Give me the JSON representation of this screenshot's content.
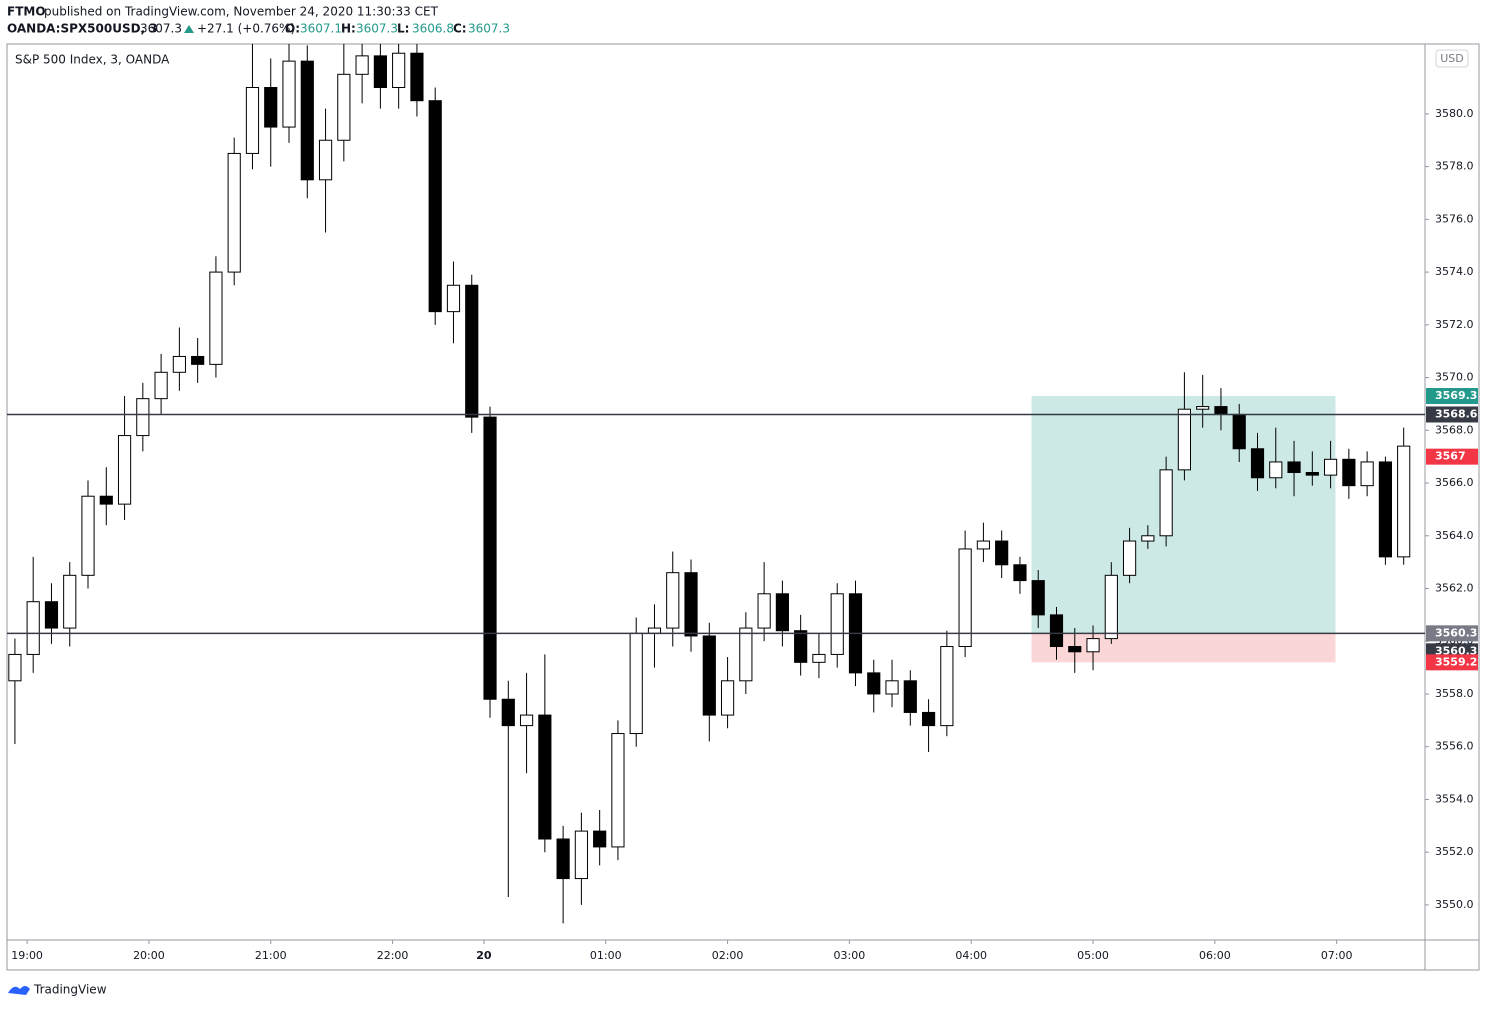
{
  "header": {
    "publisher": "FTMO",
    "published_text": "published on TradingView.com, November 24, 2020 11:30:33 CET",
    "symbol": "OANDA:SPX500USD, 3",
    "last": 3607.3,
    "change": "+27.1 (+0.76%)",
    "ohlc_labels": [
      "O:",
      "H:",
      "L:",
      "C:"
    ],
    "ohlc": [
      3607.1,
      3607.3,
      3606.8,
      3607.3
    ]
  },
  "chart_data": {
    "type": "candlestick",
    "title": "S&P 500 Index, 3, OANDA",
    "currency": "USD",
    "x": [
      -2,
      1,
      4,
      7,
      10,
      13,
      16,
      19,
      22,
      25,
      28,
      31,
      34,
      37,
      40,
      43,
      46,
      49,
      52,
      55,
      58,
      61,
      64,
      67,
      70,
      73,
      76,
      79,
      82,
      85,
      88,
      91,
      94,
      97,
      100,
      103,
      106,
      109,
      112,
      115,
      118,
      121,
      124,
      127,
      130,
      133,
      136,
      139,
      142,
      145,
      148,
      151,
      154,
      157,
      160,
      163,
      166,
      169,
      172,
      175,
      178,
      181,
      184,
      187,
      190,
      193,
      196,
      199,
      202,
      205,
      208,
      211,
      214,
      217,
      220,
      223,
      226
    ],
    "open": [
      3558.5,
      3559.5,
      3561.5,
      3560.5,
      3562.5,
      3565.5,
      3565.2,
      3567.8,
      3569.2,
      3570.2,
      3570.8,
      3570.5,
      3574.0,
      3578.5,
      3581.0,
      3579.5,
      3582.0,
      3577.5,
      3579.0,
      3581.5,
      3582.2,
      3581.0,
      3582.3,
      3580.5,
      3572.5,
      3573.5,
      3568.5,
      3557.8,
      3556.8,
      3557.2,
      3552.5,
      3551.0,
      3552.8,
      3552.2,
      3556.5,
      3560.3,
      3560.5,
      3562.6,
      3560.2,
      3557.2,
      3558.5,
      3560.5,
      3561.8,
      3560.4,
      3559.2,
      3559.5,
      3561.8,
      3558.8,
      3558.0,
      3558.5,
      3557.3,
      3556.8,
      3559.8,
      3563.5,
      3563.8,
      3562.9,
      3562.3,
      3561.0,
      3559.8,
      3559.6,
      3560.1,
      3562.5,
      3563.8,
      3564.0,
      3566.5,
      3568.8,
      3568.9,
      3568.6,
      3567.3,
      3566.2,
      3566.8,
      3566.4,
      3566.3,
      3566.9,
      3565.9,
      3566.8,
      3563.2
    ],
    "high": [
      3560.1,
      3563.2,
      3562.2,
      3563.0,
      3566.1,
      3566.6,
      3569.3,
      3569.8,
      3570.9,
      3571.9,
      3571.5,
      3574.6,
      3579.1,
      3583.0,
      3582.1,
      3583.0,
      3582.6,
      3580.2,
      3583.0,
      3583.0,
      3583.0,
      3583.0,
      3583.0,
      3581.0,
      3574.4,
      3573.9,
      3568.9,
      3558.5,
      3558.8,
      3559.5,
      3553.0,
      3553.5,
      3553.6,
      3557.0,
      3560.9,
      3561.4,
      3563.4,
      3563.1,
      3560.7,
      3559.4,
      3561.1,
      3563.0,
      3562.3,
      3561.0,
      3560.3,
      3562.2,
      3562.3,
      3559.3,
      3559.3,
      3558.9,
      3557.8,
      3560.4,
      3564.2,
      3564.5,
      3564.2,
      3563.2,
      3562.7,
      3561.3,
      3560.5,
      3560.6,
      3563.0,
      3564.3,
      3564.4,
      3567.0,
      3570.2,
      3570.1,
      3569.6,
      3569.0,
      3567.9,
      3568.1,
      3567.6,
      3567.2,
      3567.6,
      3567.3,
      3567.2,
      3567.0,
      3568.1
    ],
    "low": [
      3556.1,
      3558.8,
      3559.9,
      3559.8,
      3562.0,
      3564.4,
      3564.6,
      3567.2,
      3568.6,
      3569.5,
      3569.8,
      3570.0,
      3573.5,
      3577.9,
      3578.0,
      3578.9,
      3576.8,
      3575.5,
      3578.2,
      3580.4,
      3580.2,
      3580.2,
      3579.9,
      3572.0,
      3571.3,
      3567.9,
      3557.1,
      3550.3,
      3555.0,
      3552.0,
      3549.3,
      3550.0,
      3551.5,
      3551.7,
      3556.0,
      3559.0,
      3559.8,
      3559.6,
      3556.2,
      3556.7,
      3558.0,
      3560.0,
      3559.8,
      3558.7,
      3558.6,
      3559.0,
      3558.3,
      3557.3,
      3557.5,
      3556.8,
      3555.8,
      3556.4,
      3559.4,
      3563.0,
      3562.4,
      3561.8,
      3560.5,
      3559.3,
      3558.8,
      3558.9,
      3559.9,
      3562.2,
      3563.5,
      3563.6,
      3566.1,
      3568.1,
      3568.0,
      3566.8,
      3565.7,
      3565.8,
      3565.5,
      3565.9,
      3565.8,
      3565.4,
      3565.5,
      3562.9,
      3562.9
    ],
    "close": [
      3559.5,
      3561.5,
      3560.5,
      3562.5,
      3565.5,
      3565.2,
      3567.8,
      3569.2,
      3570.2,
      3570.8,
      3570.5,
      3574.0,
      3578.5,
      3581.0,
      3579.5,
      3582.0,
      3577.5,
      3579.0,
      3581.5,
      3582.2,
      3581.0,
      3582.3,
      3580.5,
      3572.5,
      3573.5,
      3568.5,
      3557.8,
      3556.8,
      3557.2,
      3552.5,
      3551.0,
      3552.8,
      3552.2,
      3556.5,
      3560.3,
      3560.5,
      3562.6,
      3560.2,
      3557.2,
      3558.5,
      3560.5,
      3561.8,
      3560.4,
      3559.2,
      3559.5,
      3561.8,
      3558.8,
      3558.0,
      3558.5,
      3557.3,
      3556.8,
      3559.8,
      3563.5,
      3563.8,
      3562.9,
      3562.3,
      3561.0,
      3559.8,
      3559.6,
      3560.1,
      3562.5,
      3563.8,
      3564.0,
      3566.5,
      3568.8,
      3568.9,
      3568.6,
      3567.3,
      3566.2,
      3566.8,
      3566.4,
      3566.3,
      3566.9,
      3565.9,
      3566.8,
      3563.2,
      3567.4
    ],
    "up_color": "#ffffff",
    "down_color": "#000000",
    "wick_color": "#000000",
    "xlim": [
      -3.3,
      229.5
    ],
    "xticks": [
      {
        "value": 0,
        "label": "19:00"
      },
      {
        "value": 20,
        "label": "20:00"
      },
      {
        "value": 40,
        "label": "21:00"
      },
      {
        "value": 60,
        "label": "22:00"
      },
      {
        "value": 75,
        "label": "20"
      },
      {
        "value": 95,
        "label": "01:00"
      },
      {
        "value": 115,
        "label": "02:00"
      },
      {
        "value": 135,
        "label": "03:00"
      },
      {
        "value": 155,
        "label": "04:00"
      },
      {
        "value": 175,
        "label": "05:00"
      },
      {
        "value": 195,
        "label": "06:00"
      },
      {
        "value": 215,
        "label": "07:00"
      }
    ],
    "ylim": [
      3548.67,
      3582.65
    ],
    "yticks": [
      {
        "value": 3550,
        "label": "3550.0"
      },
      {
        "value": 3552,
        "label": "3552.0"
      },
      {
        "value": 3554,
        "label": "3554.0"
      },
      {
        "value": 3556,
        "label": "3556.0"
      },
      {
        "value": 3558,
        "label": "3558.0"
      },
      {
        "value": 3560,
        "label": "3560.0"
      },
      {
        "value": 3562,
        "label": "3562.0"
      },
      {
        "value": 3564,
        "label": "3564.0"
      },
      {
        "value": 3566,
        "label": "3566.0"
      },
      {
        "value": 3568,
        "label": "3568.0"
      },
      {
        "value": 3570,
        "label": "3570.0"
      },
      {
        "value": 3572,
        "label": "3572.0"
      },
      {
        "value": 3574,
        "label": "3574.0"
      },
      {
        "value": 3576,
        "label": "3576.0"
      },
      {
        "value": 3578,
        "label": "3578.0"
      },
      {
        "value": 3580,
        "label": "3580.0"
      }
    ],
    "hlines": [
      3568.6,
      3560.3
    ],
    "position": {
      "x": [
        164.9,
        214.8
      ],
      "entry": 3560.3,
      "target": 3569.3,
      "stop": 3559.2,
      "profit_color": "#cce9e6",
      "loss_color": "#fbd6d6"
    },
    "price_labels": [
      {
        "value": 3569.3,
        "color": "#22998b"
      },
      {
        "value": 3568.6,
        "color": "#363a45"
      },
      {
        "value": 3567.0,
        "color": "#f23645"
      },
      {
        "value": 3560.3,
        "color": "#787b86"
      },
      {
        "value": 3560.3,
        "color": "#363a45"
      },
      {
        "value": 3559.2,
        "color": "#f23645"
      }
    ]
  },
  "footer": {
    "brand": "TradingView"
  }
}
